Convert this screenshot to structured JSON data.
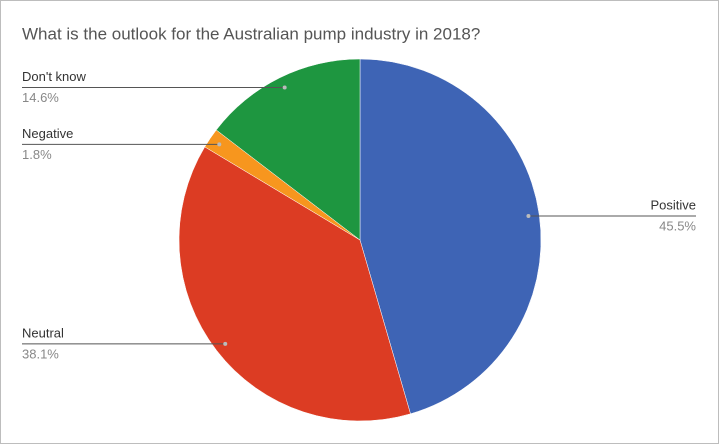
{
  "chart_data": {
    "type": "pie",
    "title": "What is the outlook for the Australian pump industry in 2018?",
    "categories": [
      "Positive",
      "Neutral",
      "Negative",
      "Don't know"
    ],
    "values": [
      45.5,
      38.1,
      1.8,
      14.6
    ],
    "value_labels": [
      "45.5%",
      "38.1%",
      "1.8%",
      "14.6%"
    ],
    "colors": [
      "#3e64b5",
      "#dc3c23",
      "#f7961e",
      "#1e9640"
    ]
  }
}
